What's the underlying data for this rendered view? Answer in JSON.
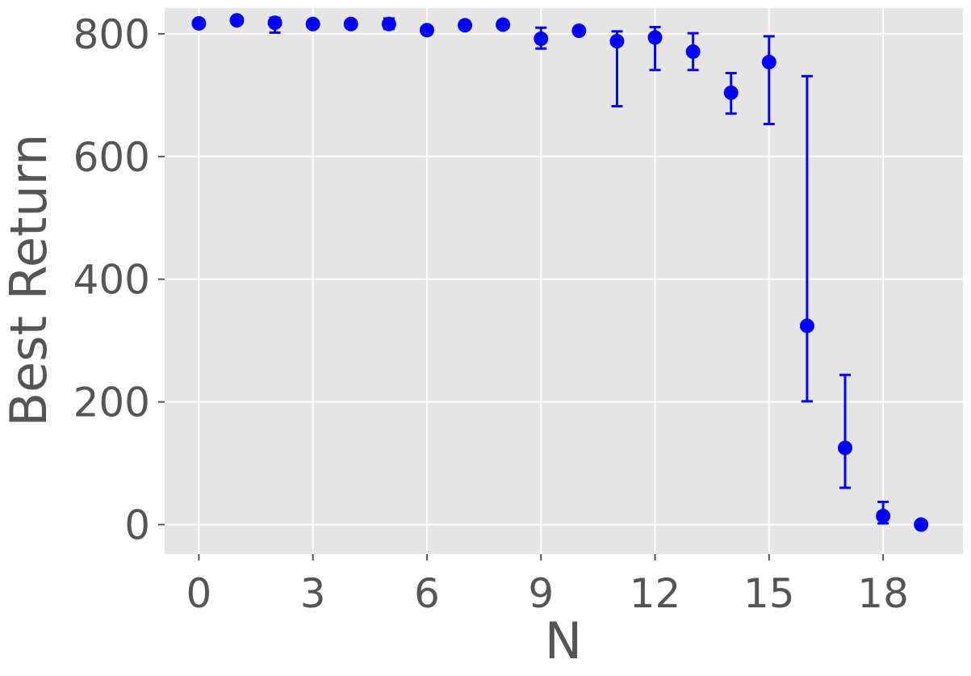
{
  "chart_data": {
    "type": "scatter",
    "title": "",
    "xlabel": "N",
    "ylabel": "Best Return",
    "xlim": [
      -0.9,
      20.1
    ],
    "ylim": [
      -48,
      842
    ],
    "xticks": [
      0,
      3,
      6,
      9,
      12,
      15,
      18
    ],
    "yticks": [
      0,
      200,
      400,
      600,
      800
    ],
    "grid": true,
    "legend": "none",
    "colors": {
      "background": "#e5e5e5",
      "grid": "#ffffff",
      "marker": "#0000ff",
      "text": "#555555"
    },
    "series": [
      {
        "x": [
          0,
          1,
          2,
          3,
          4,
          5,
          6,
          7,
          8,
          9,
          10,
          11,
          12,
          13,
          14,
          15,
          16,
          17,
          18,
          19
        ],
        "y": [
          817,
          822,
          818,
          816,
          816,
          816,
          806,
          814,
          815,
          792,
          805,
          788,
          794,
          771,
          704,
          754,
          324,
          125,
          14,
          0
        ],
        "err_low": [
          815,
          819,
          802,
          813,
          810,
          808,
          804,
          808,
          812,
          776,
          803,
          682,
          741,
          741,
          670,
          653,
          201,
          60,
          2,
          0
        ],
        "err_high": [
          820,
          825,
          826,
          819,
          821,
          825,
          808,
          820,
          818,
          810,
          807,
          804,
          811,
          801,
          736,
          796,
          731,
          244,
          37,
          1
        ]
      }
    ]
  }
}
